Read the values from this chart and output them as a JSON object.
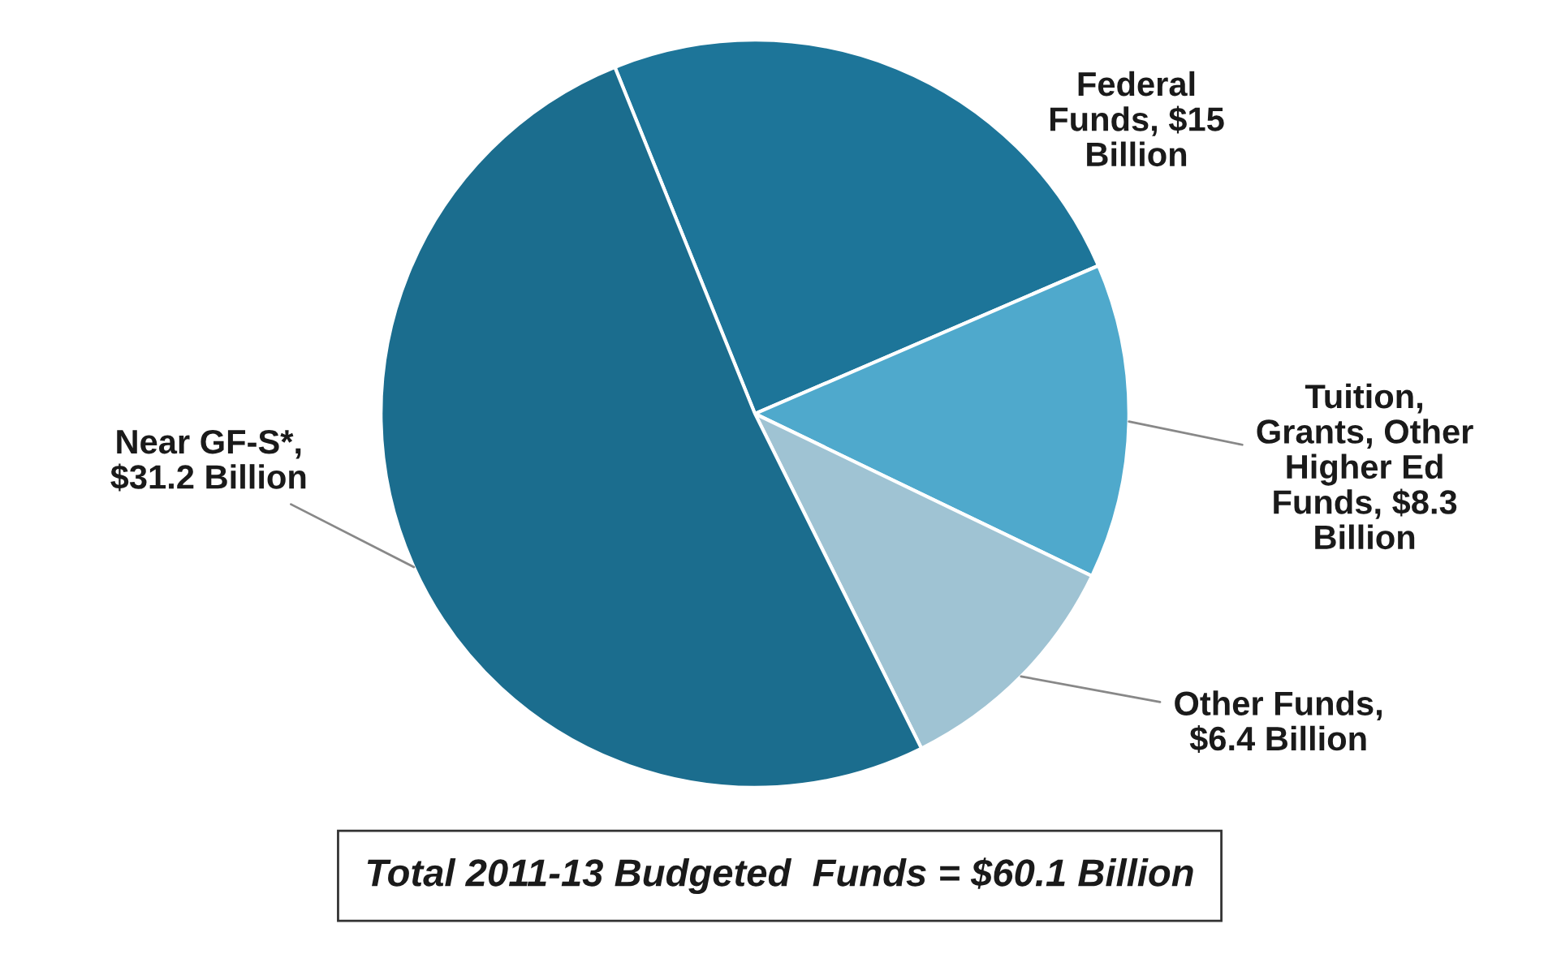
{
  "chart_data": {
    "type": "pie",
    "categories": [
      "Federal\nFunds, $15\nBillion",
      "Tuition,\nGrants, Other\nHigher Ed\nFunds, $8.3\nBillion",
      "Other Funds,\n$6.4 Billion",
      "Near GF-S*,\n$31.2 Billion"
    ],
    "values": [
      15,
      8.3,
      6.4,
      31.2
    ],
    "colors": [
      "#1d7599",
      "#4fa9cc",
      "#9fc3d3",
      "#1b6d8e"
    ],
    "annotations": [
      "Total 2011-13 Budgeted  Funds = $60.1 Billion"
    ]
  }
}
